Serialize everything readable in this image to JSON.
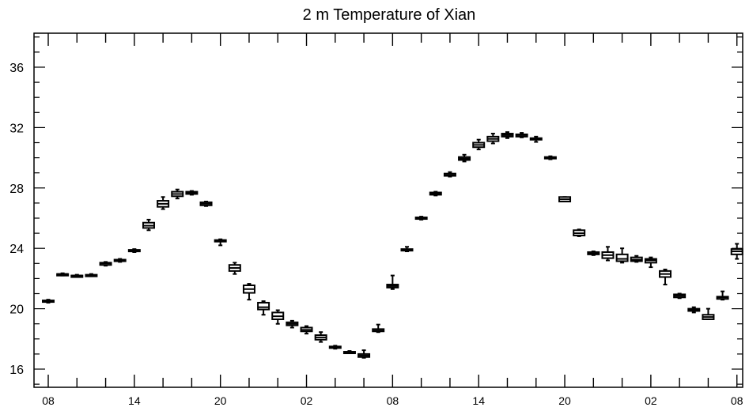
{
  "chart_data": {
    "type": "boxplot",
    "title": "2 m Temperature of Xian",
    "xlabel": "",
    "ylabel": "",
    "ylim": [
      15,
      38
    ],
    "yticks": [
      16,
      20,
      24,
      28,
      32,
      36
    ],
    "xtick_labels": [
      "08",
      "14",
      "20",
      "02",
      "08",
      "14",
      "20",
      "02",
      "08"
    ],
    "xtick_hours": [
      0,
      6,
      12,
      18,
      24,
      30,
      36,
      42,
      48
    ],
    "x_step_hours": 1,
    "grid": false,
    "legend": "none",
    "boxes": [
      {
        "x": 0,
        "min": 20.4,
        "q1": 20.45,
        "median": 20.5,
        "q3": 20.55,
        "max": 20.6
      },
      {
        "x": 1,
        "min": 22.2,
        "q1": 22.25,
        "median": 22.3,
        "q3": 22.3,
        "max": 22.35
      },
      {
        "x": 2,
        "min": 22.1,
        "q1": 22.15,
        "median": 22.2,
        "q3": 22.2,
        "max": 22.25
      },
      {
        "x": 3,
        "min": 22.15,
        "q1": 22.2,
        "median": 22.2,
        "q3": 22.25,
        "max": 22.3
      },
      {
        "x": 4,
        "min": 22.85,
        "q1": 22.9,
        "median": 23.0,
        "q3": 23.05,
        "max": 23.1
      },
      {
        "x": 5,
        "min": 23.1,
        "q1": 23.15,
        "median": 23.2,
        "q3": 23.25,
        "max": 23.3
      },
      {
        "x": 6,
        "min": 23.75,
        "q1": 23.8,
        "median": 23.85,
        "q3": 23.9,
        "max": 23.95
      },
      {
        "x": 7,
        "min": 25.2,
        "q1": 25.35,
        "median": 25.5,
        "q3": 25.7,
        "max": 25.9
      },
      {
        "x": 8,
        "min": 26.6,
        "q1": 26.75,
        "median": 26.95,
        "q3": 27.15,
        "max": 27.4
      },
      {
        "x": 9,
        "min": 27.3,
        "q1": 27.45,
        "median": 27.6,
        "q3": 27.75,
        "max": 27.9
      },
      {
        "x": 10,
        "min": 27.55,
        "q1": 27.6,
        "median": 27.7,
        "q3": 27.75,
        "max": 27.8
      },
      {
        "x": 11,
        "min": 26.8,
        "q1": 26.85,
        "median": 26.95,
        "q3": 27.05,
        "max": 27.1
      },
      {
        "x": 12,
        "min": 24.2,
        "q1": 24.5,
        "median": 24.5,
        "q3": 24.55,
        "max": 24.6
      },
      {
        "x": 13,
        "min": 22.3,
        "q1": 22.5,
        "median": 22.7,
        "q3": 22.9,
        "max": 23.05
      },
      {
        "x": 14,
        "min": 20.6,
        "q1": 21.05,
        "median": 21.3,
        "q3": 21.55,
        "max": 21.65
      },
      {
        "x": 15,
        "min": 19.6,
        "q1": 19.95,
        "median": 20.1,
        "q3": 20.4,
        "max": 20.5
      },
      {
        "x": 16,
        "min": 19.0,
        "q1": 19.3,
        "median": 19.5,
        "q3": 19.75,
        "max": 19.9
      },
      {
        "x": 17,
        "min": 18.75,
        "q1": 18.9,
        "median": 19.0,
        "q3": 19.1,
        "max": 19.2
      },
      {
        "x": 18,
        "min": 18.35,
        "q1": 18.5,
        "median": 18.6,
        "q3": 18.75,
        "max": 18.85
      },
      {
        "x": 19,
        "min": 17.8,
        "q1": 17.95,
        "median": 18.1,
        "q3": 18.25,
        "max": 18.45
      },
      {
        "x": 20,
        "min": 17.35,
        "q1": 17.4,
        "median": 17.45,
        "q3": 17.5,
        "max": 17.55
      },
      {
        "x": 21,
        "min": 17.05,
        "q1": 17.1,
        "median": 17.1,
        "q3": 17.15,
        "max": 17.2
      },
      {
        "x": 22,
        "min": 16.75,
        "q1": 16.8,
        "median": 16.9,
        "q3": 17.0,
        "max": 17.25
      },
      {
        "x": 23,
        "min": 18.45,
        "q1": 18.5,
        "median": 18.55,
        "q3": 18.65,
        "max": 18.95
      },
      {
        "x": 24,
        "min": 21.3,
        "q1": 21.4,
        "median": 21.5,
        "q3": 21.6,
        "max": 22.2
      },
      {
        "x": 25,
        "min": 23.8,
        "q1": 23.85,
        "median": 23.9,
        "q3": 23.95,
        "max": 24.1
      },
      {
        "x": 26,
        "min": 25.9,
        "q1": 25.95,
        "median": 26.0,
        "q3": 26.05,
        "max": 26.1
      },
      {
        "x": 27,
        "min": 27.5,
        "q1": 27.55,
        "median": 27.6,
        "q3": 27.7,
        "max": 27.75
      },
      {
        "x": 28,
        "min": 28.75,
        "q1": 28.8,
        "median": 28.85,
        "q3": 28.95,
        "max": 29.05
      },
      {
        "x": 29,
        "min": 29.75,
        "q1": 29.85,
        "median": 29.95,
        "q3": 30.05,
        "max": 30.2
      },
      {
        "x": 30,
        "min": 30.55,
        "q1": 30.7,
        "median": 30.85,
        "q3": 31.0,
        "max": 31.2
      },
      {
        "x": 31,
        "min": 30.95,
        "q1": 31.1,
        "median": 31.25,
        "q3": 31.4,
        "max": 31.6
      },
      {
        "x": 32,
        "min": 31.3,
        "q1": 31.4,
        "median": 31.5,
        "q3": 31.6,
        "max": 31.7
      },
      {
        "x": 33,
        "min": 31.35,
        "q1": 31.4,
        "median": 31.5,
        "q3": 31.55,
        "max": 31.65
      },
      {
        "x": 34,
        "min": 31.05,
        "q1": 31.2,
        "median": 31.25,
        "q3": 31.3,
        "max": 31.4
      },
      {
        "x": 35,
        "min": 29.9,
        "q1": 29.95,
        "median": 30.0,
        "q3": 30.05,
        "max": 30.1
      },
      {
        "x": 36,
        "min": 27.1,
        "q1": 27.1,
        "median": 27.25,
        "q3": 27.4,
        "max": 27.4
      },
      {
        "x": 37,
        "min": 24.8,
        "q1": 24.85,
        "median": 25.0,
        "q3": 25.2,
        "max": 25.25
      },
      {
        "x": 38,
        "min": 23.55,
        "q1": 23.6,
        "median": 23.65,
        "q3": 23.75,
        "max": 23.8
      },
      {
        "x": 39,
        "min": 23.2,
        "q1": 23.35,
        "median": 23.55,
        "q3": 23.75,
        "max": 24.1
      },
      {
        "x": 40,
        "min": 23.05,
        "q1": 23.15,
        "median": 23.3,
        "q3": 23.6,
        "max": 24.0
      },
      {
        "x": 41,
        "min": 23.1,
        "q1": 23.15,
        "median": 23.25,
        "q3": 23.4,
        "max": 23.5
      },
      {
        "x": 42,
        "min": 22.75,
        "q1": 23.05,
        "median": 23.2,
        "q3": 23.3,
        "max": 23.4
      },
      {
        "x": 43,
        "min": 21.6,
        "q1": 22.1,
        "median": 22.3,
        "q3": 22.5,
        "max": 22.6
      },
      {
        "x": 44,
        "min": 20.7,
        "q1": 20.75,
        "median": 20.85,
        "q3": 20.95,
        "max": 21.0
      },
      {
        "x": 45,
        "min": 19.75,
        "q1": 19.85,
        "median": 19.9,
        "q3": 20.0,
        "max": 20.1
      },
      {
        "x": 46,
        "min": 19.3,
        "q1": 19.3,
        "median": 19.45,
        "q3": 19.6,
        "max": 20.0
      },
      {
        "x": 47,
        "min": 20.6,
        "q1": 20.65,
        "median": 20.75,
        "q3": 20.8,
        "max": 21.15
      },
      {
        "x": 48,
        "min": 23.3,
        "q1": 23.6,
        "median": 23.8,
        "q3": 23.95,
        "max": 24.3
      }
    ]
  }
}
